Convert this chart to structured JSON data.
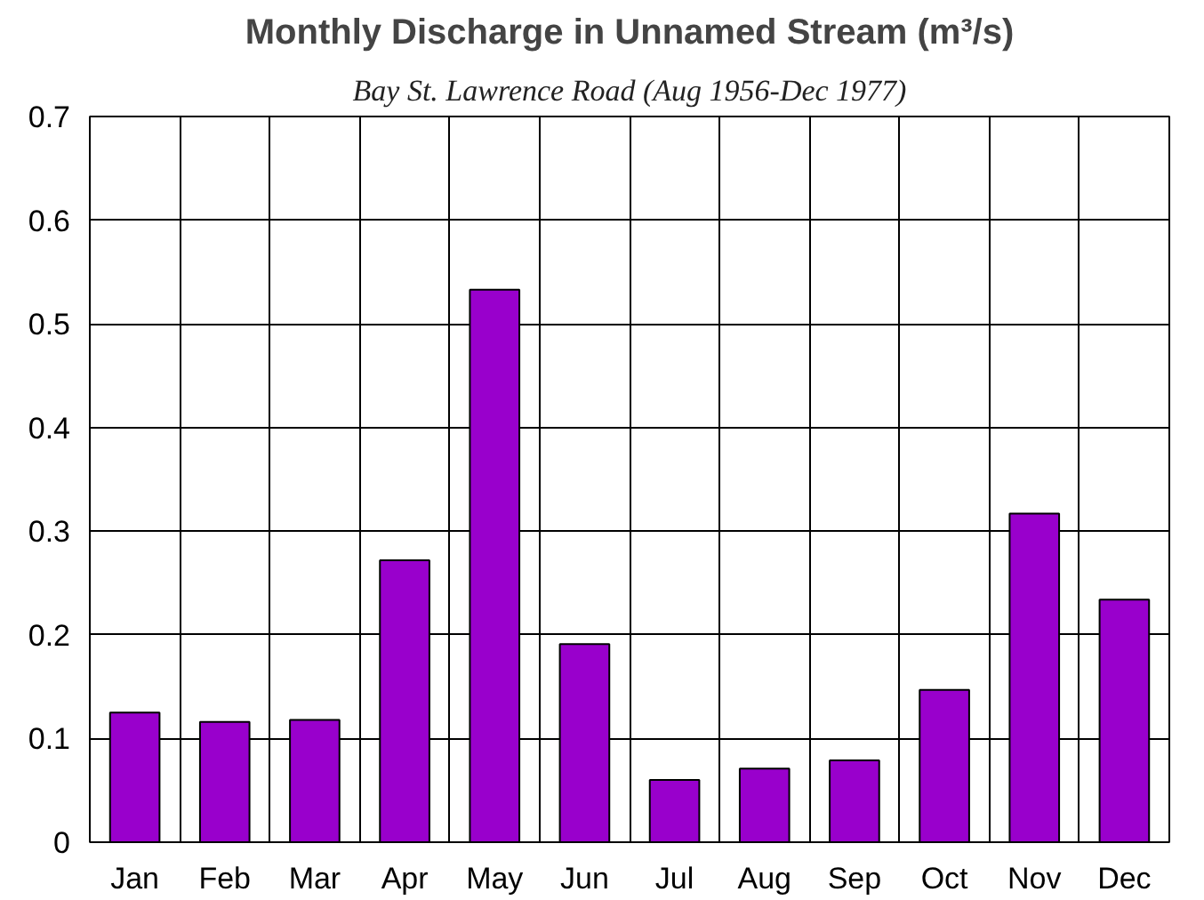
{
  "chart_data": {
    "type": "bar",
    "title": "Monthly Discharge in Unnamed Stream (m³/s)",
    "subtitle": "Bay St. Lawrence Road (Aug 1956-Dec 1977)",
    "categories": [
      "Jan",
      "Feb",
      "Mar",
      "Apr",
      "May",
      "Jun",
      "Jul",
      "Aug",
      "Sep",
      "Oct",
      "Nov",
      "Dec"
    ],
    "values": [
      0.125,
      0.116,
      0.118,
      0.272,
      0.533,
      0.191,
      0.06,
      0.071,
      0.079,
      0.147,
      0.317,
      0.234
    ],
    "color": "#9900cc",
    "ylim": [
      0,
      0.7
    ],
    "yticks": [
      {
        "value": 0,
        "label": "0"
      },
      0.1,
      0.2,
      0.3,
      0.4,
      0.5,
      0.6,
      0.7
    ],
    "grid": true
  }
}
